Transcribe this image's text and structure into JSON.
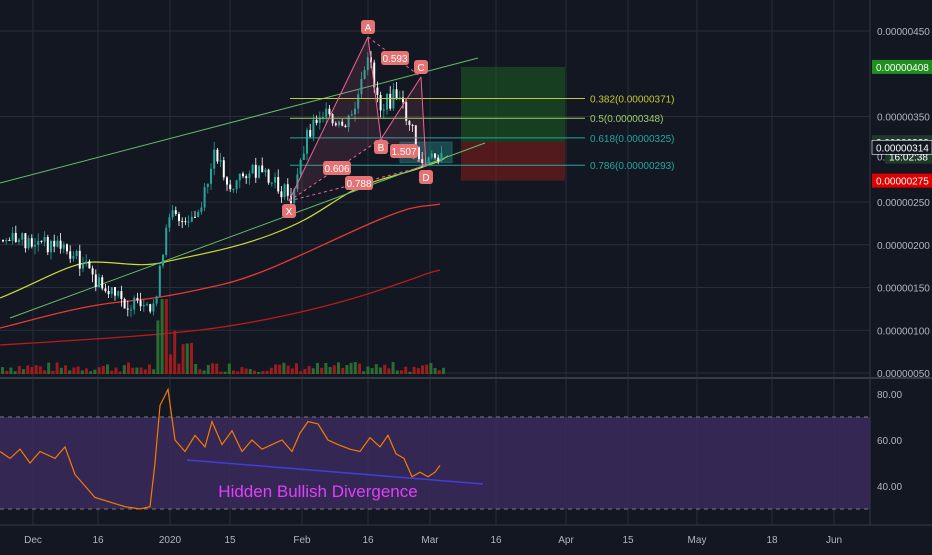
{
  "theme": {
    "background": "#131722",
    "grid": "#2a2e39",
    "axis_text": "#b2b5be",
    "candle_up": "#26a69a",
    "candle_down": "#ffffff",
    "volume_up": "#2e7d32",
    "volume_down": "#b71c1c",
    "pattern_line": "#f06292",
    "channel": "#66bb6a",
    "ma_short": "#cddc39",
    "ma_mid": "#e53935",
    "ma_long": "#b71c1c",
    "rsi_fill": "#3b2a5c",
    "rsi_line": "#f57c00",
    "divergence_line": "#3f3fd8",
    "divergence_text": "#e040fb",
    "profit_zone": "#1b5e20",
    "loss_zone": "#7f1d1d",
    "fib_color": "#c0ca33",
    "fib_color_2": "#26a69a"
  },
  "price_axis": {
    "ticks": [
      {
        "value": 4.5e-06,
        "label": "0.00000450"
      },
      {
        "value": 3.5e-06,
        "label": "0.00000350"
      },
      {
        "value": 2.5e-06,
        "label": "0.00000250"
      },
      {
        "value": 2e-06,
        "label": "0.00000200"
      },
      {
        "value": 1.5e-06,
        "label": "0.00000150"
      },
      {
        "value": 1e-06,
        "label": "0.00000100"
      },
      {
        "value": 5e-07,
        "label": "0.00000050"
      }
    ],
    "badges": [
      {
        "value": 4.08e-06,
        "label": "0.00000408",
        "color": "#1e8f1e"
      },
      {
        "value": 3.2e-06,
        "label": "0.00000320",
        "color": "#1f3a2a"
      },
      {
        "value": 3.03e-06,
        "label": "16:02:38",
        "color": "#1f3a2a"
      },
      {
        "value": 3.14e-06,
        "label": "0.00000314",
        "color": "#131722"
      },
      {
        "value": 2.75e-06,
        "label": "0.00000275",
        "color": "#e00000"
      }
    ],
    "partial_label": "0."
  },
  "rsi_axis": {
    "ticks": [
      {
        "value": 80,
        "label": "80.00"
      },
      {
        "value": 60,
        "label": "60.00"
      },
      {
        "value": 40,
        "label": "40.00"
      }
    ],
    "upper_band": 70,
    "lower_band": 30
  },
  "time_axis": {
    "labels": [
      "Dec",
      "16",
      "2020",
      "15",
      "Feb",
      "16",
      "Mar",
      "16",
      "Apr",
      "15",
      "May",
      "18",
      "Jun"
    ]
  },
  "pattern": {
    "points": [
      "A",
      "C",
      "B",
      "D",
      "X"
    ],
    "ratios": [
      "0.593",
      "0.606",
      "0.788",
      "1.507"
    ]
  },
  "fib_levels": [
    {
      "label": "0.382(0.00000371)",
      "value": 3.71e-06
    },
    {
      "label": "0.5(0.00000348)",
      "value": 3.48e-06
    },
    {
      "label": "0.618(0.00000325)",
      "value": 3.25e-06
    },
    {
      "label": "0.786(0.00000293)",
      "value": 2.93e-06
    }
  ],
  "annotation": {
    "text": "Hidden Bullish Divergence"
  }
}
